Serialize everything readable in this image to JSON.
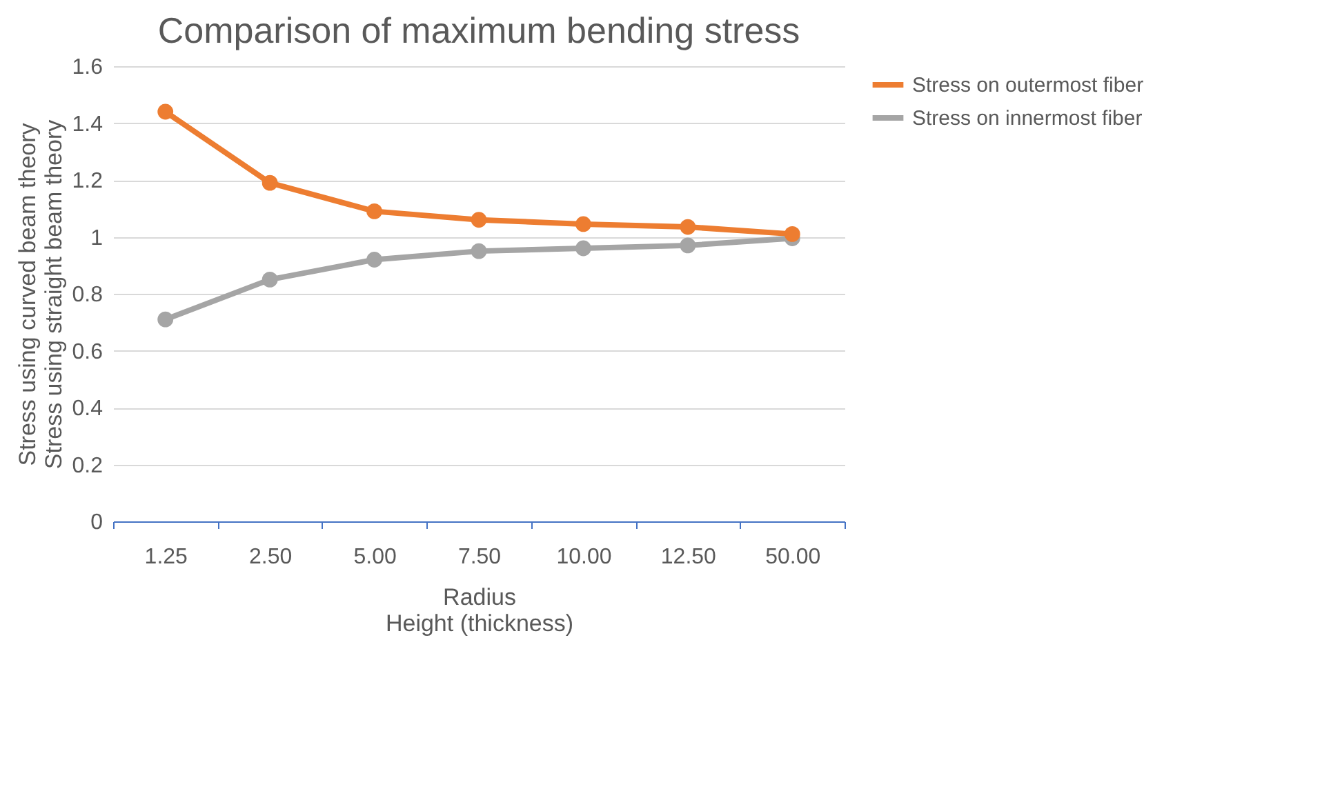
{
  "chart_data": {
    "type": "line",
    "title": "Comparison of maximum bending stress",
    "xlabel": "Radius\nHeight (thickness)",
    "ylabel": "Stress using curved beam theory\nStress using straight beam theory",
    "categories": [
      "1.25",
      "2.50",
      "5.00",
      "7.50",
      "10.00",
      "12.50",
      "50.00"
    ],
    "series": [
      {
        "name": "Stress on outermost fiber",
        "color": "#ed7d31",
        "values": [
          1.44,
          1.19,
          1.09,
          1.06,
          1.045,
          1.035,
          1.01
        ]
      },
      {
        "name": "Stress on innermost fiber",
        "color": "#a5a5a5",
        "values": [
          0.71,
          0.85,
          0.92,
          0.95,
          0.96,
          0.97,
          0.995
        ]
      }
    ],
    "ylim": [
      0,
      1.6
    ],
    "yticks": [
      0,
      0.2,
      0.4,
      0.6,
      0.8,
      1,
      1.2,
      1.4,
      1.6
    ],
    "grid": "y",
    "legend": "right",
    "marker": "circle",
    "line_style": "solid"
  }
}
